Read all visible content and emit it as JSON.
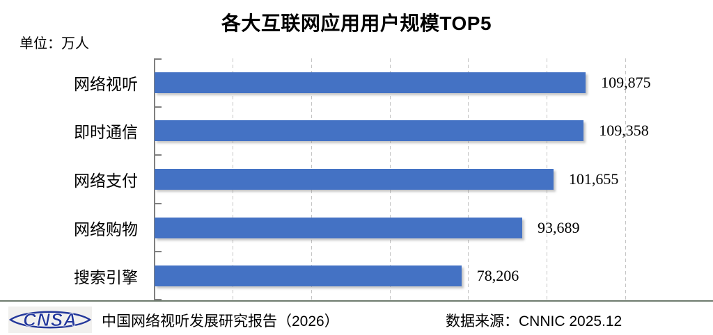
{
  "title": "各大互联网应用用户规模TOP5",
  "unit_label": "单位：万人",
  "chart_data": {
    "type": "bar",
    "orientation": "horizontal",
    "title": "各大互联网应用用户规模TOP5",
    "unit": "万人",
    "categories": [
      "网络视听",
      "即时通信",
      "网络支付",
      "网络购物",
      "搜索引擎"
    ],
    "values": [
      109875,
      109358,
      101655,
      93689,
      78206
    ],
    "value_labels": [
      "109,875",
      "109,358",
      "101,655",
      "93,689",
      "78,206"
    ],
    "xlim": [
      0,
      120000
    ],
    "gridline_interval": 20000,
    "grid": "vertical-dashed",
    "legend": "none",
    "bar_color": "#4472C4"
  },
  "footer": {
    "logo_text": "CNSA",
    "report_label": "中国网络视听发展研究报告（2026）",
    "source_label": "数据来源：CNNIC 2025.12"
  },
  "colors": {
    "bar": "#4472C4",
    "axis": "#7f7f7f",
    "gridline": "#c4c4c4",
    "footer_line": "#6e7b6e",
    "logo_blue": "#23379b",
    "text": "#000000"
  }
}
